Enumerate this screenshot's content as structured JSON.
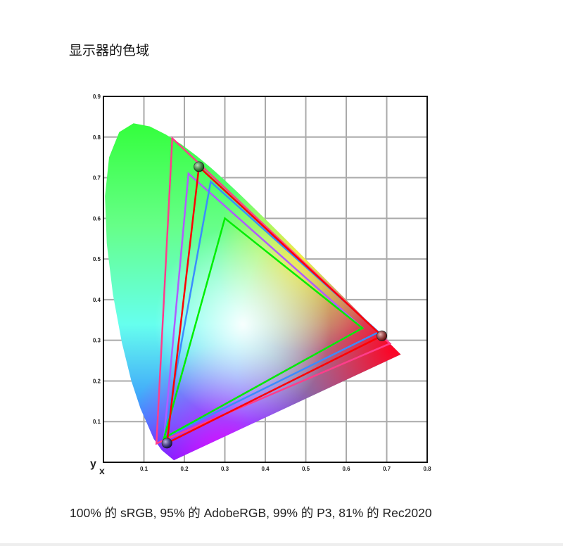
{
  "page": {
    "title": "显示器的色域",
    "caption": "100% 的 sRGB, 95% 的 AdobeRGB, 99% 的 P3, 81% 的 Rec2020"
  },
  "chart_data": {
    "type": "chromaticity-diagram",
    "xlabel": "x",
    "ylabel": "y",
    "xlim": [
      0,
      0.8
    ],
    "ylim": [
      0,
      0.9
    ],
    "grid": true,
    "x_ticks": [
      "0.1",
      "0.2",
      "0.3",
      "0.4",
      "0.5",
      "0.6",
      "0.7",
      "0.8"
    ],
    "y_ticks": [
      "0.1",
      "0.2",
      "0.3",
      "0.4",
      "0.5",
      "0.6",
      "0.7",
      "0.8",
      "0.9"
    ],
    "spectral_locus": [
      [
        0.1741,
        0.005
      ],
      [
        0.144,
        0.0297
      ],
      [
        0.1241,
        0.0578
      ],
      [
        0.0913,
        0.1327
      ],
      [
        0.0687,
        0.2007
      ],
      [
        0.0454,
        0.295
      ],
      [
        0.0235,
        0.4127
      ],
      [
        0.0082,
        0.5384
      ],
      [
        0.0039,
        0.6548
      ],
      [
        0.0139,
        0.7502
      ],
      [
        0.0389,
        0.812
      ],
      [
        0.0743,
        0.8338
      ],
      [
        0.1142,
        0.8262
      ],
      [
        0.1547,
        0.8059
      ],
      [
        0.1929,
        0.7816
      ],
      [
        0.2296,
        0.7543
      ],
      [
        0.2658,
        0.7243
      ],
      [
        0.3016,
        0.6923
      ],
      [
        0.3373,
        0.6589
      ],
      [
        0.3731,
        0.6245
      ],
      [
        0.4087,
        0.5896
      ],
      [
        0.4441,
        0.5547
      ],
      [
        0.4788,
        0.5202
      ],
      [
        0.5125,
        0.4866
      ],
      [
        0.5448,
        0.4544
      ],
      [
        0.5752,
        0.4242
      ],
      [
        0.6029,
        0.3965
      ],
      [
        0.627,
        0.3725
      ],
      [
        0.6482,
        0.3514
      ],
      [
        0.6658,
        0.334
      ],
      [
        0.6801,
        0.3197
      ],
      [
        0.6915,
        0.3083
      ],
      [
        0.7006,
        0.2993
      ],
      [
        0.7347,
        0.2653
      ]
    ],
    "series": [
      {
        "color": "#ff3d8b",
        "points": [
          [
            0.708,
            0.292
          ],
          [
            0.17,
            0.797
          ],
          [
            0.131,
            0.046
          ]
        ]
      },
      {
        "color": "#b05cff",
        "points": [
          [
            0.64,
            0.33
          ],
          [
            0.21,
            0.71
          ],
          [
            0.15,
            0.06
          ]
        ]
      },
      {
        "color": "#3b8cff",
        "points": [
          [
            0.68,
            0.32
          ],
          [
            0.265,
            0.69
          ],
          [
            0.15,
            0.06
          ]
        ]
      },
      {
        "color": "#00ee00",
        "points": [
          [
            0.64,
            0.33
          ],
          [
            0.3,
            0.6
          ],
          [
            0.15,
            0.06
          ]
        ]
      },
      {
        "color": "#ff0000",
        "points": [
          [
            0.688,
            0.311
          ],
          [
            0.236,
            0.727
          ],
          [
            0.157,
            0.047
          ]
        ],
        "markers": true
      }
    ]
  }
}
